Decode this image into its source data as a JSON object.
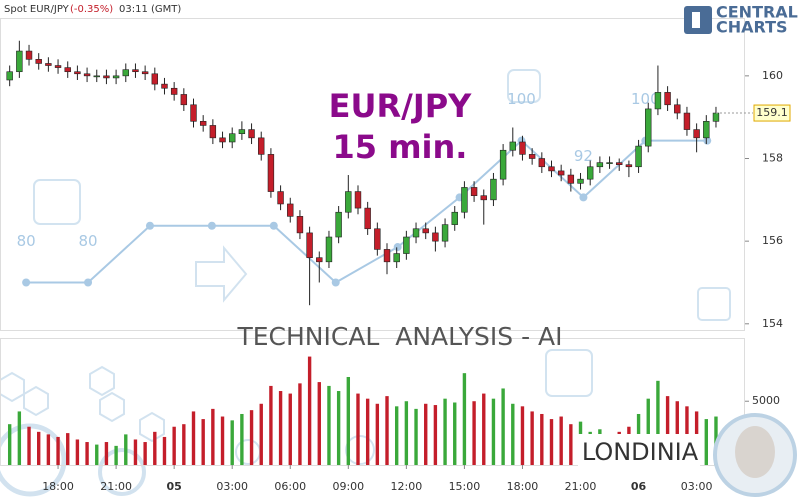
{
  "chart_data": {
    "type": "candlestick",
    "header": {
      "symbol": "Spot EUR/JPY",
      "change": "(-0.35%)",
      "time": "03:11 (GMT)"
    },
    "title": "EUR/JPY",
    "subtitle": "15 min.",
    "banner": "TECHNICAL  ANALYSIS - AI",
    "brand": {
      "top": "CENTRAL",
      "bottom": "CHARTS"
    },
    "watermark": "LONDINIA",
    "up_color": "#3aa83a",
    "down_color": "#c41e2a",
    "open": [
      159.9,
      160.1,
      160.6,
      160.4,
      160.3,
      160.25,
      160.2,
      160.1,
      160.05,
      160.0,
      160.0,
      159.95,
      160.0,
      160.15,
      160.1,
      160.05,
      159.8,
      159.7,
      159.55,
      159.3,
      158.9,
      158.8,
      158.5,
      158.4,
      158.6,
      158.7,
      158.5,
      158.1,
      157.2,
      156.9,
      156.6,
      156.2,
      155.6,
      155.5,
      156.1,
      156.7,
      157.2,
      156.8,
      156.3,
      155.8,
      155.5,
      155.7,
      156.1,
      156.3,
      156.2,
      156.0,
      156.4,
      156.7,
      157.3,
      157.1,
      157.0,
      157.5,
      158.2,
      158.4,
      158.1,
      158.0,
      157.8,
      157.7,
      157.6,
      157.4,
      157.5,
      157.8,
      157.9,
      157.9,
      157.85,
      157.8,
      158.3,
      159.2,
      159.6,
      159.3,
      159.1,
      158.7,
      158.5,
      158.9
    ],
    "high": [
      160.25,
      160.85,
      160.75,
      160.55,
      160.45,
      160.4,
      160.35,
      160.25,
      160.2,
      160.15,
      160.15,
      160.15,
      160.3,
      160.3,
      160.25,
      160.2,
      159.95,
      159.85,
      159.7,
      159.45,
      159.05,
      158.95,
      158.65,
      158.75,
      158.9,
      158.85,
      158.65,
      158.25,
      157.35,
      157.05,
      156.75,
      156.35,
      155.75,
      156.25,
      156.85,
      157.6,
      157.35,
      156.95,
      156.45,
      155.95,
      155.85,
      156.25,
      156.45,
      156.45,
      156.35,
      156.55,
      156.85,
      157.45,
      157.45,
      157.25,
      157.65,
      158.35,
      158.75,
      158.55,
      158.25,
      158.15,
      157.95,
      157.85,
      157.75,
      157.65,
      157.95,
      158.05,
      158.05,
      158.0,
      157.95,
      158.45,
      159.35,
      160.25,
      159.75,
      159.45,
      159.25,
      158.85,
      159.05,
      159.25
    ],
    "low": [
      159.75,
      159.95,
      160.25,
      160.15,
      160.1,
      160.05,
      159.95,
      159.9,
      159.85,
      159.85,
      159.8,
      159.8,
      159.85,
      159.95,
      159.9,
      159.65,
      159.55,
      159.4,
      159.15,
      158.75,
      158.65,
      158.35,
      158.25,
      158.25,
      158.45,
      158.35,
      157.95,
      157.05,
      156.75,
      156.45,
      156.05,
      154.45,
      155.0,
      155.35,
      155.95,
      156.55,
      156.65,
      156.15,
      155.65,
      155.2,
      155.35,
      155.55,
      155.95,
      156.05,
      155.75,
      155.85,
      156.25,
      156.55,
      156.95,
      156.4,
      156.85,
      157.35,
      158.05,
      157.95,
      157.85,
      157.65,
      157.55,
      157.45,
      157.2,
      157.25,
      157.35,
      157.65,
      157.75,
      157.7,
      157.55,
      157.65,
      158.15,
      159.05,
      159.15,
      158.95,
      158.55,
      158.15,
      158.35,
      158.75
    ],
    "close": [
      160.1,
      160.6,
      160.4,
      160.3,
      160.25,
      160.2,
      160.1,
      160.05,
      160.0,
      160.0,
      159.95,
      160.0,
      160.15,
      160.1,
      160.05,
      159.8,
      159.7,
      159.55,
      159.3,
      158.9,
      158.8,
      158.5,
      158.4,
      158.6,
      158.7,
      158.5,
      158.1,
      157.2,
      156.9,
      156.6,
      156.2,
      155.6,
      155.5,
      156.1,
      156.7,
      157.2,
      156.8,
      156.3,
      155.8,
      155.5,
      155.7,
      156.1,
      156.3,
      156.2,
      156.0,
      156.4,
      156.7,
      157.3,
      157.1,
      157.0,
      157.5,
      158.2,
      158.4,
      158.1,
      158.0,
      157.8,
      157.7,
      157.6,
      157.4,
      157.5,
      157.8,
      157.9,
      157.9,
      157.85,
      157.8,
      158.3,
      159.2,
      159.6,
      159.3,
      159.1,
      158.7,
      158.5,
      158.9,
      159.1
    ],
    "volume": [
      3200,
      4200,
      3000,
      2600,
      2400,
      2200,
      2500,
      2000,
      1800,
      1600,
      1800,
      1500,
      2400,
      2000,
      1800,
      2600,
      2200,
      3000,
      3200,
      4200,
      3600,
      4400,
      3800,
      3500,
      4000,
      4300,
      4800,
      6200,
      5800,
      5600,
      6400,
      8500,
      6500,
      6200,
      5800,
      6900,
      5600,
      5200,
      4800,
      5400,
      4600,
      5000,
      4400,
      4800,
      4700,
      5200,
      4900,
      7200,
      5000,
      5600,
      5200,
      6000,
      4800,
      4600,
      4200,
      4000,
      3600,
      3800,
      3200,
      3400,
      2600,
      2800,
      2400,
      2600,
      3000,
      4000,
      5200,
      6600,
      5400,
      5000,
      4600,
      4200,
      3600,
      3800
    ],
    "xlim": [
      -1,
      76
    ],
    "xticks": [
      {
        "value": 5,
        "label": "18:00"
      },
      {
        "value": 11,
        "label": "21:00"
      },
      {
        "value": 17,
        "label": "05"
      },
      {
        "value": 23,
        "label": "03:00"
      },
      {
        "value": 29,
        "label": "06:00"
      },
      {
        "value": 35,
        "label": "09:00"
      },
      {
        "value": 41,
        "label": "12:00"
      },
      {
        "value": 47,
        "label": "15:00"
      },
      {
        "value": 53,
        "label": "18:00"
      },
      {
        "value": 59,
        "label": "21:00"
      },
      {
        "value": 65,
        "label": "06"
      },
      {
        "value": 71,
        "label": "03:00"
      }
    ],
    "ylim": [
      153.85,
      161.4
    ],
    "yticks": [
      154,
      156,
      158,
      160
    ],
    "volume_ylim": [
      0,
      9800
    ],
    "volume_yticks": [
      5000
    ],
    "score": {
      "x": [
        1.7,
        8.1,
        14.5,
        20.9,
        27.3,
        33.7,
        40.1,
        46.5,
        52.9,
        59.3,
        65.7,
        72.1
      ],
      "values": [
        80,
        80,
        88,
        88,
        88,
        80,
        85,
        92,
        100,
        92,
        100,
        100
      ],
      "labeled": [
        0,
        1,
        8,
        9,
        10
      ],
      "ylim": [
        73.3,
        117.3
      ],
      "color": "#a9c9e4"
    }
  }
}
